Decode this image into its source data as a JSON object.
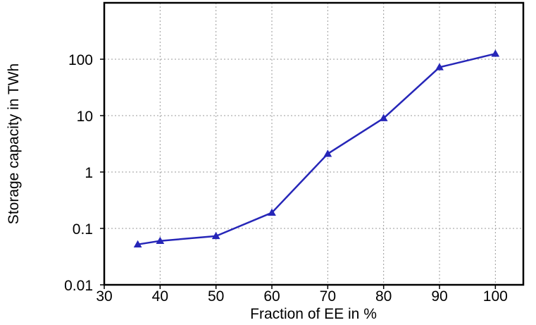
{
  "chart_data": {
    "type": "line",
    "title": "",
    "xlabel": "Fraction of EE in %",
    "ylabel": "Storage capacity in TWh",
    "x_scale": "linear",
    "y_scale": "log",
    "xlim": [
      30,
      105
    ],
    "ylim": [
      0.01,
      1000
    ],
    "x_ticks": [
      30,
      40,
      50,
      60,
      70,
      80,
      90,
      100
    ],
    "x_tick_labels": [
      "30",
      "40",
      "50",
      "60",
      "70",
      "80",
      "90",
      "100"
    ],
    "y_ticks": [
      0.01,
      0.1,
      1,
      10,
      100
    ],
    "y_tick_labels": [
      "0.01",
      "0.1",
      "1",
      "10",
      "100"
    ],
    "grid": true,
    "legend": "none",
    "marker": "triangle",
    "series_color": "#2626b8",
    "series": [
      {
        "x": [
          36,
          40,
          50,
          60,
          70,
          80,
          90,
          100
        ],
        "values": [
          0.052,
          0.06,
          0.073,
          0.19,
          2.1,
          9,
          72,
          125
        ]
      }
    ]
  }
}
